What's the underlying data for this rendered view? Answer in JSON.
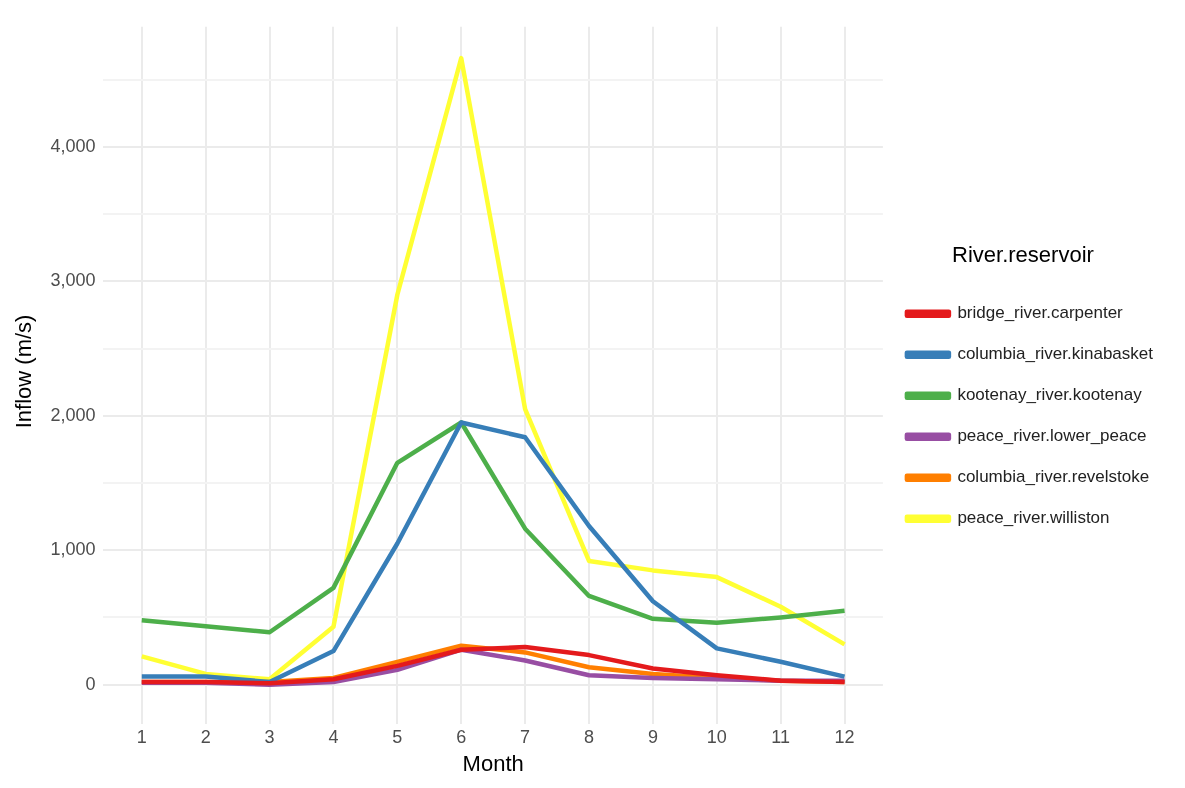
{
  "chart_data": {
    "type": "line",
    "xlabel": "Month",
    "ylabel": "Inflow (m/s)",
    "legend_title": "River.reservoir",
    "legend": "right",
    "grid": true,
    "marker": "none",
    "line_style": "solid",
    "x": [
      1,
      2,
      3,
      4,
      5,
      6,
      7,
      8,
      9,
      10,
      11,
      12
    ],
    "xlim": [
      0.4,
      12.6
    ],
    "xticks": [
      1,
      2,
      3,
      4,
      5,
      6,
      7,
      8,
      9,
      10,
      11,
      12
    ],
    "ylim": [
      -233,
      4893
    ],
    "yticks": [
      0,
      {
        "value": 500,
        "label": null
      },
      {
        "value": 1000,
        "label": "1,000"
      },
      {
        "value": 1500,
        "label": null
      },
      {
        "value": 2000,
        "label": "2,000"
      },
      {
        "value": 2500,
        "label": null
      },
      {
        "value": 3000,
        "label": "3,000"
      },
      {
        "value": 3500,
        "label": null
      },
      {
        "value": 4000,
        "label": "4,000"
      },
      {
        "value": 4500,
        "label": null
      }
    ],
    "series": [
      {
        "name": "bridge_river.carpenter",
        "color": "#e41a1c",
        "values": [
          20,
          20,
          10,
          40,
          140,
          260,
          280,
          220,
          120,
          70,
          30,
          20
        ]
      },
      {
        "name": "columbia_river.kinabasket",
        "color": "#377eb8",
        "values": [
          60,
          60,
          20,
          250,
          1050,
          1950,
          1840,
          1180,
          620,
          270,
          170,
          60
        ]
      },
      {
        "name": "kootenay_river.kootenay",
        "color": "#4daf4a",
        "values": [
          480,
          435,
          390,
          720,
          1650,
          1950,
          1160,
          660,
          490,
          460,
          500,
          550
        ]
      },
      {
        "name": "peace_river.lower_peace",
        "color": "#984ea3",
        "values": [
          15,
          15,
          0,
          20,
          110,
          260,
          180,
          70,
          50,
          40,
          30,
          30
        ]
      },
      {
        "name": "columbia_river.revelstoke",
        "color": "#ff7f00",
        "values": [
          20,
          20,
          20,
          50,
          170,
          290,
          240,
          130,
          80,
          50,
          30,
          20
        ]
      },
      {
        "name": "peace_river.williston",
        "color": "#ffff33",
        "values": [
          210,
          80,
          40,
          430,
          2900,
          4660,
          2050,
          920,
          850,
          800,
          580,
          300
        ]
      }
    ]
  }
}
